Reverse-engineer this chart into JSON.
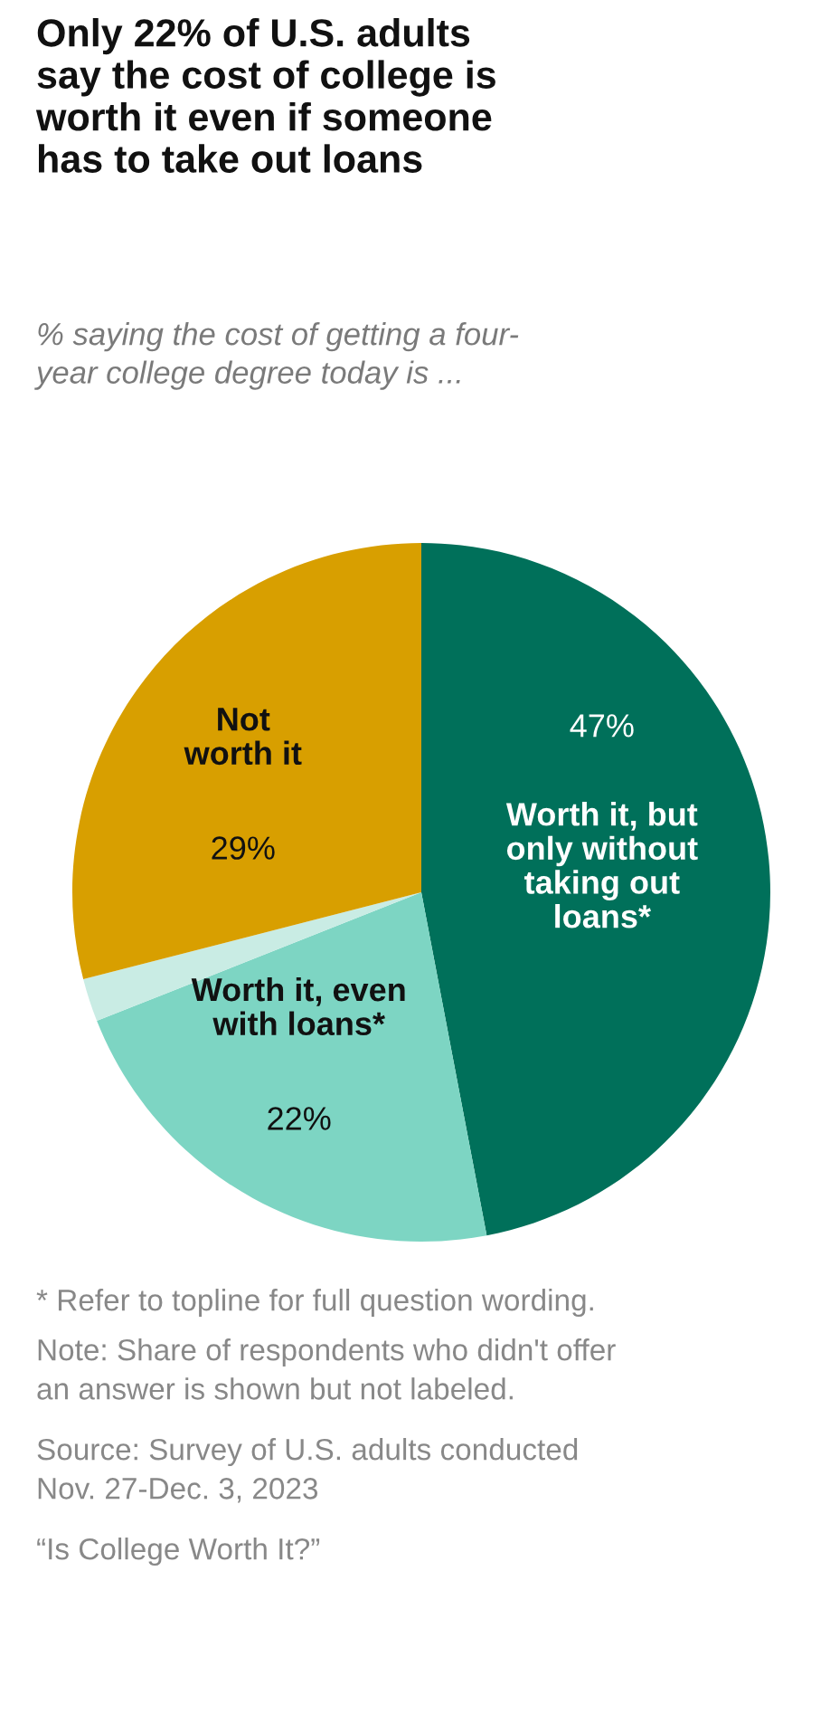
{
  "chart_data": {
    "type": "pie",
    "title": "Only 22% of U.S. adults\nsay the cost of college is\nworth it even if someone\nhas to take out loans",
    "subtitle": "% saying the cost of getting a four-\nyear college degree today is ...",
    "categories": [
      "Worth it, but\nonly without\ntaking out\nloans*",
      "Worth it, even\nwith loans*",
      null,
      "Not\nworth it"
    ],
    "values": [
      47,
      22,
      2,
      29
    ],
    "value_labels": [
      "47%",
      "22%",
      null,
      "29%"
    ],
    "colors": [
      "#00705a",
      "#7dd5c3",
      "#c9ece4",
      "#d89f00"
    ],
    "annotations": [
      "* Refer to topline for full question wording.",
      "Note: Share of respondents who didn't offer\nan answer is shown but not labeled.",
      "Source: Survey of U.S. adults conducted\nNov. 27-Dec. 3, 2023",
      "“Is College Worth It?”"
    ]
  }
}
